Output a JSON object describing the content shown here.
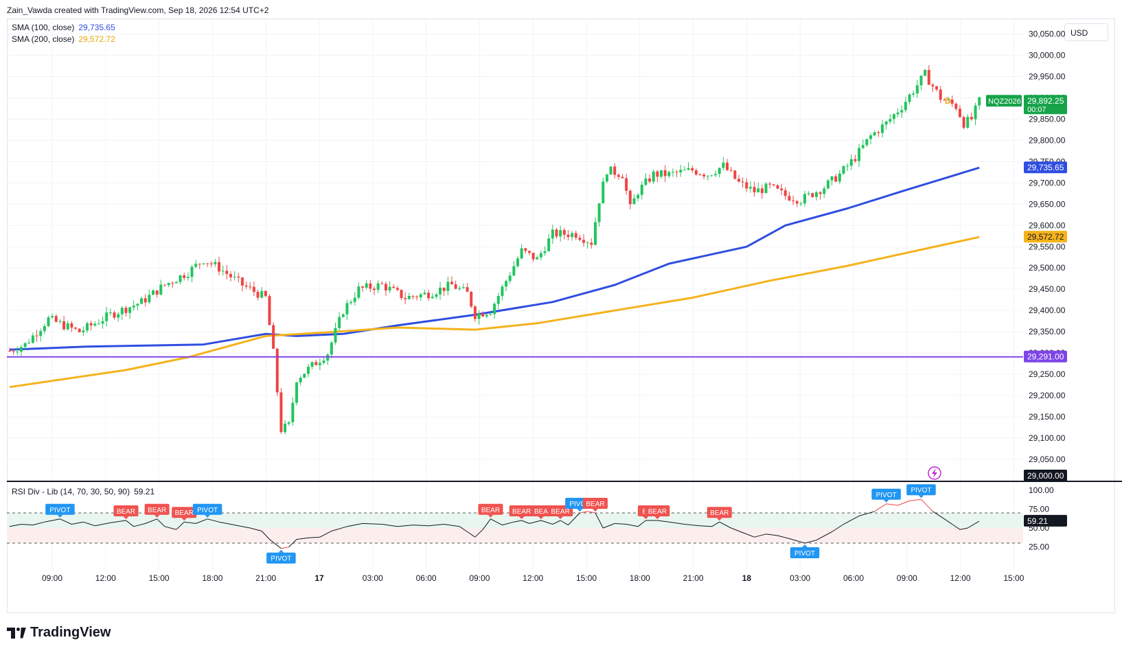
{
  "header": {
    "text": "Zain_Vawda created with TradingView.com, Sep 18, 2026 12:54 UTC+2"
  },
  "currency": "USD",
  "legend": {
    "sma100": {
      "label": "SMA (100, close)",
      "value": "29,735.65",
      "color": "#2f4de0"
    },
    "sma200": {
      "label": "SMA (200, close)",
      "value": "29,572.72",
      "color": "#f5b21b"
    },
    "rsi": {
      "label": "RSI Div - Lib (14, 70, 30, 50, 90)",
      "value": "59.21"
    }
  },
  "price_labels": {
    "ticker": "NQZ2026",
    "last": "29,892.25",
    "countdown": "00:07",
    "sma100": "29,735.65",
    "sma200": "29,572.72",
    "hline": "29,291.00",
    "bottom": "29,000.00",
    "session_badge": "D"
  },
  "logo": {
    "text": "TradingView"
  },
  "colors": {
    "up": "#26a69a",
    "upBody": "#22c55e",
    "down": "#ef4444",
    "sma100": "#2f4de0",
    "sma200": "#f5b21b",
    "hline": "#7e45e8",
    "grid": "#f0f3fa",
    "text": "#131722"
  },
  "chart_data": [
    {
      "type": "candlestick",
      "title": "NQZ2026",
      "y_axis_ticks": [
        "30,050.00",
        "30,000.00",
        "29,950.00",
        "29,900.00",
        "29,850.00",
        "29,800.00",
        "29,750.00",
        "29,700.00",
        "29,650.00",
        "29,600.00",
        "29,550.00",
        "29,500.00",
        "29,450.00",
        "29,400.00",
        "29,350.00",
        "29,300.00",
        "29,250.00",
        "29,200.00",
        "29,150.00",
        "29,100.00",
        "29,050.00"
      ],
      "x_axis_ticks": [
        "09:00",
        "12:00",
        "15:00",
        "18:00",
        "21:00",
        "17",
        "03:00",
        "06:00",
        "09:00",
        "12:00",
        "15:00",
        "18:00",
        "21:00",
        "18",
        "03:00",
        "06:00",
        "09:00",
        "12:00",
        "15:00"
      ],
      "ylim": [
        29000,
        30075
      ],
      "grid": true,
      "horizontal_line": 29291.0,
      "anchors": [
        {
          "t": 0,
          "p": 29305
        },
        {
          "t": 4,
          "p": 29320
        },
        {
          "t": 10,
          "p": 29380
        },
        {
          "t": 18,
          "p": 29350
        },
        {
          "t": 26,
          "p": 29390
        },
        {
          "t": 34,
          "p": 29420
        },
        {
          "t": 40,
          "p": 29460
        },
        {
          "t": 46,
          "p": 29490
        },
        {
          "t": 50,
          "p": 29520
        },
        {
          "t": 54,
          "p": 29500
        },
        {
          "t": 60,
          "p": 29460
        },
        {
          "t": 66,
          "p": 29430
        },
        {
          "t": 68,
          "p": 29300
        },
        {
          "t": 70,
          "p": 29120
        },
        {
          "t": 72,
          "p": 29130
        },
        {
          "t": 74,
          "p": 29240
        },
        {
          "t": 78,
          "p": 29270
        },
        {
          "t": 82,
          "p": 29300
        },
        {
          "t": 86,
          "p": 29400
        },
        {
          "t": 90,
          "p": 29450
        },
        {
          "t": 96,
          "p": 29460
        },
        {
          "t": 102,
          "p": 29430
        },
        {
          "t": 108,
          "p": 29440
        },
        {
          "t": 114,
          "p": 29460
        },
        {
          "t": 118,
          "p": 29440
        },
        {
          "t": 120,
          "p": 29390
        },
        {
          "t": 124,
          "p": 29400
        },
        {
          "t": 128,
          "p": 29470
        },
        {
          "t": 132,
          "p": 29540
        },
        {
          "t": 136,
          "p": 29520
        },
        {
          "t": 140,
          "p": 29580
        },
        {
          "t": 146,
          "p": 29580
        },
        {
          "t": 150,
          "p": 29560
        },
        {
          "t": 152,
          "p": 29660
        },
        {
          "t": 154,
          "p": 29730
        },
        {
          "t": 158,
          "p": 29720
        },
        {
          "t": 160,
          "p": 29640
        },
        {
          "t": 162,
          "p": 29680
        },
        {
          "t": 166,
          "p": 29720
        },
        {
          "t": 170,
          "p": 29720
        },
        {
          "t": 176,
          "p": 29730
        },
        {
          "t": 180,
          "p": 29720
        },
        {
          "t": 184,
          "p": 29740
        },
        {
          "t": 188,
          "p": 29700
        },
        {
          "t": 192,
          "p": 29680
        },
        {
          "t": 196,
          "p": 29690
        },
        {
          "t": 200,
          "p": 29670
        },
        {
          "t": 204,
          "p": 29660
        },
        {
          "t": 210,
          "p": 29690
        },
        {
          "t": 214,
          "p": 29720
        },
        {
          "t": 218,
          "p": 29760
        },
        {
          "t": 222,
          "p": 29810
        },
        {
          "t": 226,
          "p": 29840
        },
        {
          "t": 230,
          "p": 29880
        },
        {
          "t": 234,
          "p": 29930
        },
        {
          "t": 236,
          "p": 29955
        },
        {
          "t": 240,
          "p": 29900
        },
        {
          "t": 244,
          "p": 29880
        },
        {
          "t": 246,
          "p": 29840
        },
        {
          "t": 248,
          "p": 29850
        },
        {
          "t": 250,
          "p": 29892
        }
      ],
      "series": [
        {
          "name": "SMA (100, close)",
          "points": [
            {
              "t": 0,
              "p": 29308
            },
            {
              "t": 20,
              "p": 29315
            },
            {
              "t": 50,
              "p": 29320
            },
            {
              "t": 66,
              "p": 29345
            },
            {
              "t": 74,
              "p": 29340
            },
            {
              "t": 86,
              "p": 29345
            },
            {
              "t": 100,
              "p": 29365
            },
            {
              "t": 120,
              "p": 29390
            },
            {
              "t": 140,
              "p": 29420
            },
            {
              "t": 156,
              "p": 29460
            },
            {
              "t": 170,
              "p": 29510
            },
            {
              "t": 190,
              "p": 29550
            },
            {
              "t": 200,
              "p": 29600
            },
            {
              "t": 216,
              "p": 29640
            },
            {
              "t": 230,
              "p": 29680
            },
            {
              "t": 250,
              "p": 29735.65
            }
          ]
        },
        {
          "name": "SMA (200, close)",
          "points": [
            {
              "t": 0,
              "p": 29220
            },
            {
              "t": 30,
              "p": 29260
            },
            {
              "t": 46,
              "p": 29290
            },
            {
              "t": 66,
              "p": 29340
            },
            {
              "t": 84,
              "p": 29350
            },
            {
              "t": 100,
              "p": 29360
            },
            {
              "t": 120,
              "p": 29355
            },
            {
              "t": 136,
              "p": 29370
            },
            {
              "t": 156,
              "p": 29400
            },
            {
              "t": 176,
              "p": 29430
            },
            {
              "t": 196,
              "p": 29470
            },
            {
              "t": 216,
              "p": 29505
            },
            {
              "t": 236,
              "p": 29545
            },
            {
              "t": 250,
              "p": 29572.72
            }
          ]
        }
      ]
    },
    {
      "type": "line",
      "title": "RSI Div - Lib (14, 70, 30, 50, 90)",
      "y_axis_ticks": [
        "100.00",
        "75.00",
        "50.00",
        "25.00"
      ],
      "ylim": [
        0,
        100
      ],
      "levels": [
        70,
        50,
        30
      ],
      "last_value": 59.21,
      "markers": [
        {
          "t": 13,
          "label": "PIVOT",
          "kind": "pivot",
          "pos": "above",
          "v": 62
        },
        {
          "t": 30,
          "label": "BEAR",
          "kind": "bear",
          "pos": "above",
          "v": 60
        },
        {
          "t": 38,
          "label": "BEAR",
          "kind": "bear",
          "pos": "above",
          "v": 62
        },
        {
          "t": 45,
          "label": "BEAR",
          "kind": "bear",
          "pos": "above",
          "v": 58
        },
        {
          "t": 51,
          "label": "PIVOT",
          "kind": "pivot",
          "pos": "above",
          "v": 62
        },
        {
          "t": 70,
          "label": "PIVOT",
          "kind": "pivot",
          "pos": "below",
          "v": 23
        },
        {
          "t": 124,
          "label": "BEAR",
          "kind": "bear",
          "pos": "above",
          "v": 62
        },
        {
          "t": 132,
          "label": "BEAR",
          "kind": "bear",
          "pos": "above",
          "v": 60
        },
        {
          "t": 137,
          "label": "BEA",
          "kind": "bear",
          "pos": "above",
          "v": 60
        },
        {
          "t": 142,
          "label": "BEAR",
          "kind": "bear",
          "pos": "above",
          "v": 60
        },
        {
          "t": 147,
          "label": "PIVOT",
          "kind": "pivot",
          "pos": "above",
          "v": 70
        },
        {
          "t": 151,
          "label": "BEAR",
          "kind": "bear",
          "pos": "above",
          "v": 70
        },
        {
          "t": 164,
          "label": "BI",
          "kind": "bear",
          "pos": "above",
          "v": 60
        },
        {
          "t": 167,
          "label": "BEAR",
          "kind": "bear",
          "pos": "above",
          "v": 60
        },
        {
          "t": 183,
          "label": "BEAR",
          "kind": "bear",
          "pos": "above",
          "v": 58
        },
        {
          "t": 205,
          "label": "PIVOT",
          "kind": "pivot",
          "pos": "below",
          "v": 30
        },
        {
          "t": 226,
          "label": "PIVOT",
          "kind": "pivot",
          "pos": "above",
          "v": 82
        },
        {
          "t": 235,
          "label": "PIVOT",
          "kind": "pivot",
          "pos": "above",
          "v": 88
        }
      ],
      "points": [
        {
          "t": 0,
          "v": 52
        },
        {
          "t": 3,
          "v": 55
        },
        {
          "t": 6,
          "v": 54
        },
        {
          "t": 9,
          "v": 58
        },
        {
          "t": 13,
          "v": 62
        },
        {
          "t": 16,
          "v": 55
        },
        {
          "t": 19,
          "v": 58
        },
        {
          "t": 22,
          "v": 53
        },
        {
          "t": 26,
          "v": 57
        },
        {
          "t": 30,
          "v": 60
        },
        {
          "t": 32,
          "v": 52
        },
        {
          "t": 35,
          "v": 56
        },
        {
          "t": 38,
          "v": 62
        },
        {
          "t": 40,
          "v": 52
        },
        {
          "t": 43,
          "v": 48
        },
        {
          "t": 45,
          "v": 58
        },
        {
          "t": 48,
          "v": 56
        },
        {
          "t": 51,
          "v": 62
        },
        {
          "t": 54,
          "v": 58
        },
        {
          "t": 58,
          "v": 54
        },
        {
          "t": 62,
          "v": 50
        },
        {
          "t": 65,
          "v": 46
        },
        {
          "t": 67,
          "v": 35
        },
        {
          "t": 70,
          "v": 23
        },
        {
          "t": 72,
          "v": 25
        },
        {
          "t": 74,
          "v": 35
        },
        {
          "t": 77,
          "v": 37
        },
        {
          "t": 80,
          "v": 38
        },
        {
          "t": 83,
          "v": 46
        },
        {
          "t": 87,
          "v": 52
        },
        {
          "t": 91,
          "v": 56
        },
        {
          "t": 96,
          "v": 55
        },
        {
          "t": 100,
          "v": 52
        },
        {
          "t": 104,
          "v": 54
        },
        {
          "t": 108,
          "v": 53
        },
        {
          "t": 112,
          "v": 55
        },
        {
          "t": 116,
          "v": 52
        },
        {
          "t": 118,
          "v": 45
        },
        {
          "t": 120,
          "v": 38
        },
        {
          "t": 122,
          "v": 48
        },
        {
          "t": 124,
          "v": 62
        },
        {
          "t": 127,
          "v": 54
        },
        {
          "t": 130,
          "v": 58
        },
        {
          "t": 132,
          "v": 60
        },
        {
          "t": 134,
          "v": 56
        },
        {
          "t": 137,
          "v": 60
        },
        {
          "t": 140,
          "v": 55
        },
        {
          "t": 142,
          "v": 60
        },
        {
          "t": 144,
          "v": 54
        },
        {
          "t": 147,
          "v": 70
        },
        {
          "t": 149,
          "v": 72
        },
        {
          "t": 151,
          "v": 70
        },
        {
          "t": 153,
          "v": 50
        },
        {
          "t": 156,
          "v": 56
        },
        {
          "t": 159,
          "v": 55
        },
        {
          "t": 162,
          "v": 52
        },
        {
          "t": 164,
          "v": 60
        },
        {
          "t": 167,
          "v": 60
        },
        {
          "t": 170,
          "v": 58
        },
        {
          "t": 174,
          "v": 55
        },
        {
          "t": 178,
          "v": 53
        },
        {
          "t": 181,
          "v": 52
        },
        {
          "t": 183,
          "v": 58
        },
        {
          "t": 186,
          "v": 50
        },
        {
          "t": 189,
          "v": 44
        },
        {
          "t": 192,
          "v": 38
        },
        {
          "t": 195,
          "v": 42
        },
        {
          "t": 198,
          "v": 40
        },
        {
          "t": 201,
          "v": 36
        },
        {
          "t": 205,
          "v": 30
        },
        {
          "t": 208,
          "v": 34
        },
        {
          "t": 212,
          "v": 45
        },
        {
          "t": 215,
          "v": 55
        },
        {
          "t": 219,
          "v": 66
        },
        {
          "t": 223,
          "v": 72
        },
        {
          "t": 226,
          "v": 82
        },
        {
          "t": 229,
          "v": 80
        },
        {
          "t": 232,
          "v": 86
        },
        {
          "t": 235,
          "v": 88
        },
        {
          "t": 238,
          "v": 72
        },
        {
          "t": 241,
          "v": 62
        },
        {
          "t": 243,
          "v": 55
        },
        {
          "t": 245,
          "v": 48
        },
        {
          "t": 247,
          "v": 50
        },
        {
          "t": 250,
          "v": 59.21
        }
      ]
    }
  ]
}
